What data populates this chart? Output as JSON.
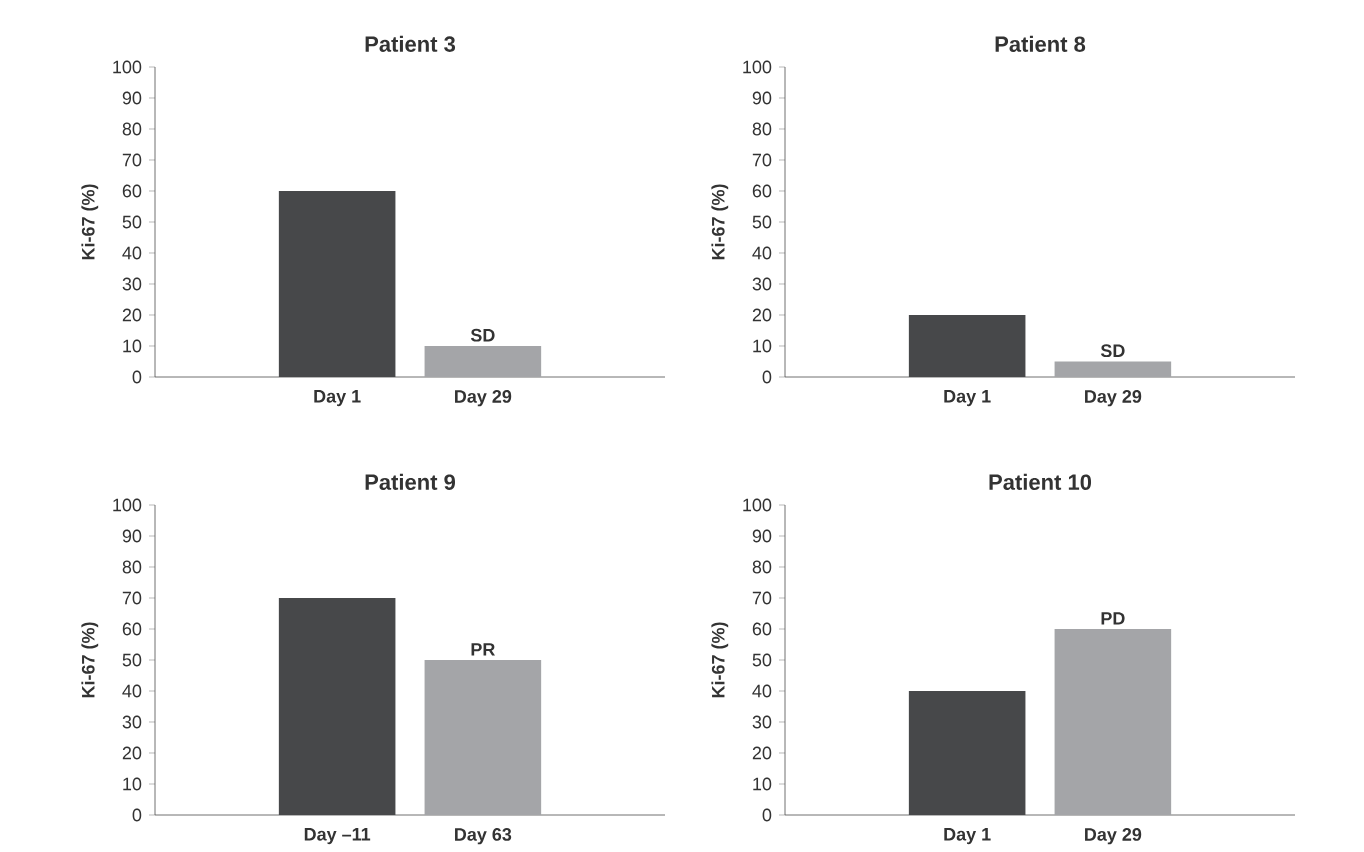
{
  "chart_data": [
    {
      "type": "bar",
      "title": "Patient 3",
      "categories": [
        "Day 1",
        "Day 29"
      ],
      "values": [
        60,
        10
      ],
      "colors": [
        "#47484a",
        "#a4a5a8"
      ],
      "ylabel": "Ki-67 (%)",
      "ylim": [
        0,
        100
      ],
      "yticks": [
        0,
        10,
        20,
        30,
        40,
        50,
        60,
        70,
        80,
        90,
        100
      ],
      "annotations": [
        {
          "text": "SD",
          "x": "Day 29",
          "y": 10
        }
      ]
    },
    {
      "type": "bar",
      "title": "Patient 8",
      "categories": [
        "Day 1",
        "Day 29"
      ],
      "values": [
        20,
        5
      ],
      "colors": [
        "#47484a",
        "#a4a5a8"
      ],
      "ylabel": "Ki-67 (%)",
      "ylim": [
        0,
        100
      ],
      "yticks": [
        0,
        10,
        20,
        30,
        40,
        50,
        60,
        70,
        80,
        90,
        100
      ],
      "annotations": [
        {
          "text": "SD",
          "x": "Day 29",
          "y": 5
        }
      ]
    },
    {
      "type": "bar",
      "title": "Patient 9",
      "categories": [
        "Day –11",
        "Day 63"
      ],
      "values": [
        70,
        50
      ],
      "colors": [
        "#47484a",
        "#a4a5a8"
      ],
      "ylabel": "Ki-67 (%)",
      "ylim": [
        0,
        100
      ],
      "yticks": [
        0,
        10,
        20,
        30,
        40,
        50,
        60,
        70,
        80,
        90,
        100
      ],
      "annotations": [
        {
          "text": "PR",
          "x": "Day 63",
          "y": 50
        }
      ]
    },
    {
      "type": "bar",
      "title": "Patient 10",
      "categories": [
        "Day 1",
        "Day 29"
      ],
      "values": [
        40,
        60
      ],
      "colors": [
        "#47484a",
        "#a4a5a8"
      ],
      "ylabel": "Ki-67 (%)",
      "ylim": [
        0,
        100
      ],
      "yticks": [
        0,
        10,
        20,
        30,
        40,
        50,
        60,
        70,
        80,
        90,
        100
      ],
      "annotations": [
        {
          "text": "PD",
          "x": "Day 29",
          "y": 60
        }
      ]
    }
  ]
}
